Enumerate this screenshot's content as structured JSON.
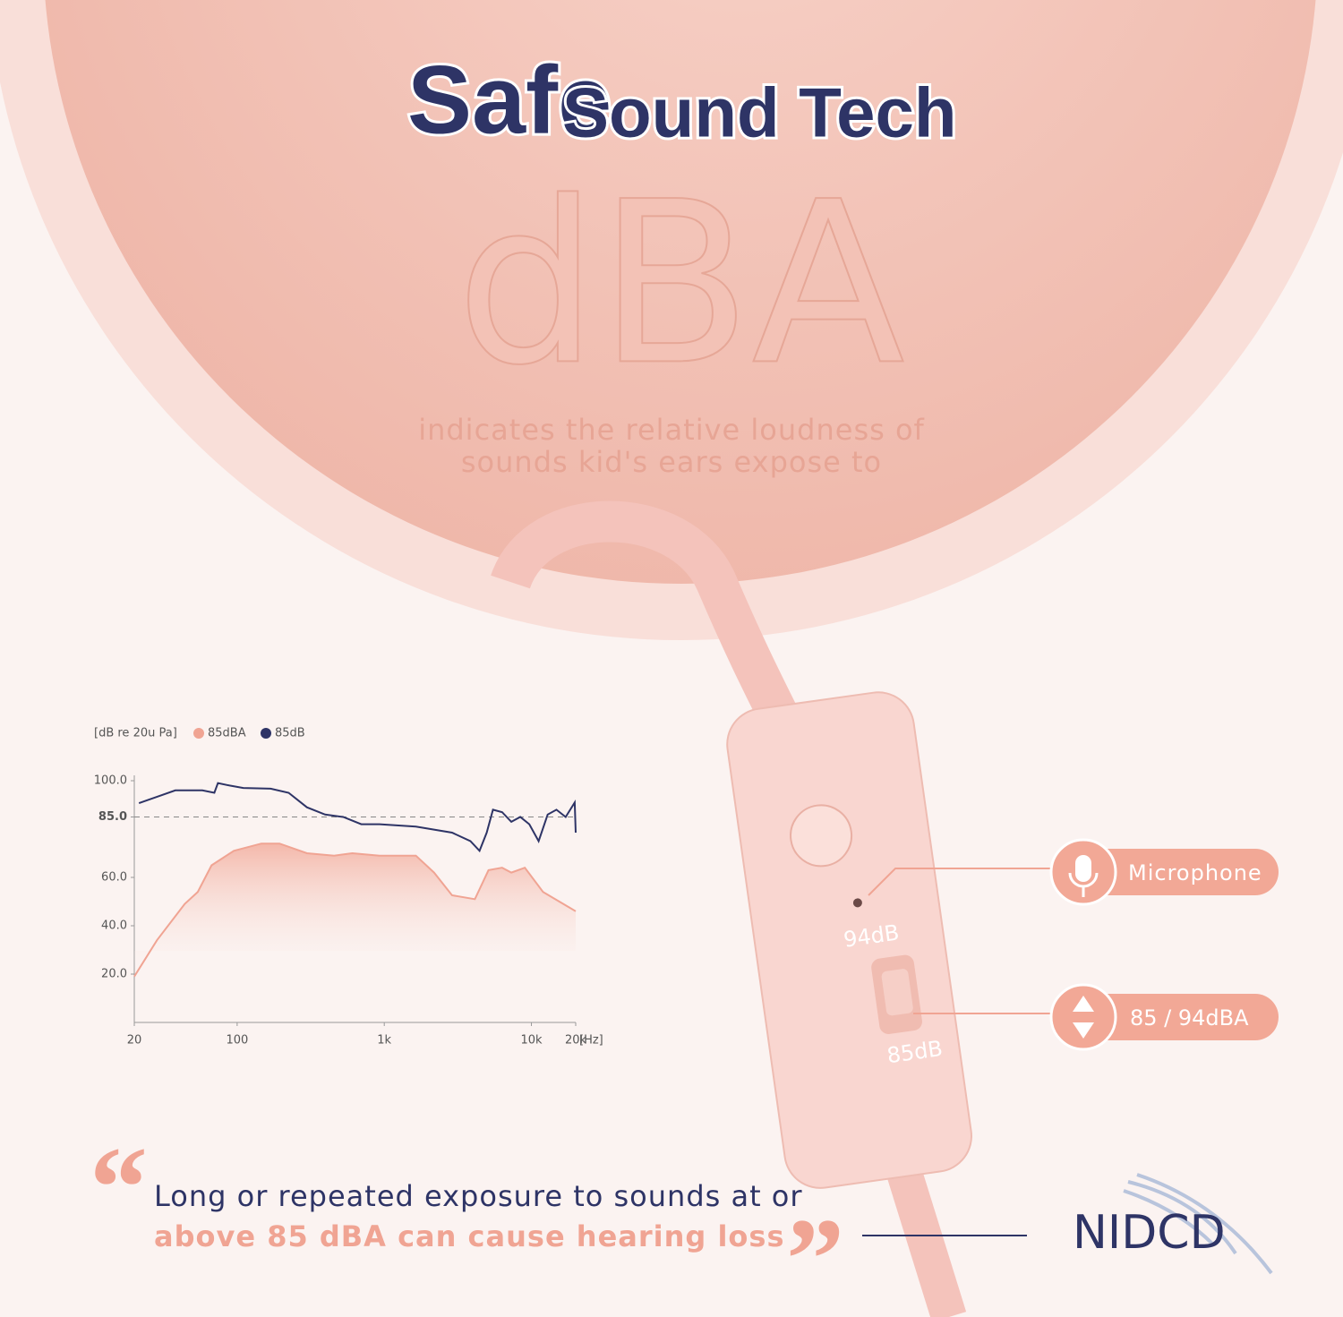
{
  "header": {
    "title_a": "Safe",
    "title_b": "Sound Tech",
    "big": "dBA",
    "subtitle": [
      "indicates the relative loudness of",
      "sounds kid's ears expose to"
    ]
  },
  "device": {
    "label_top": "94dB",
    "label_bottom": "85dB"
  },
  "callouts": [
    "Microphone",
    "85 / 94dBA"
  ],
  "quote": {
    "open": "“",
    "close": "”",
    "lines": [
      "Long or repeated exposure to sounds at or",
      "above 85 dBA can cause hearing loss"
    ],
    "source": "NIDCD"
  },
  "chart_data": {
    "type": "line",
    "y_label": "[dB re 20u Pa]",
    "x_label": "[Hz]",
    "x_log": true,
    "xlim": [
      20,
      20000
    ],
    "xticks": [
      20,
      100,
      {
        "value": 1000,
        "label": "1k"
      },
      {
        "value": 10000,
        "label": "10k"
      },
      {
        "value": 20000,
        "label": "20k"
      }
    ],
    "ylim": [
      0,
      100
    ],
    "yticks": [
      {
        "value": 100,
        "label": "100.0"
      },
      {
        "value": 85,
        "label": "85.0"
      },
      {
        "value": 60,
        "label": "60.0"
      },
      {
        "value": 40,
        "label": "40.0"
      },
      {
        "value": 20,
        "label": "20.0"
      }
    ],
    "reference_line": 85,
    "series": [
      {
        "name": "85dBA",
        "color": "#f0a493",
        "area": true,
        "x": [
          20,
          28.5,
          44,
          54,
          67,
          95,
          146,
          194,
          298,
          456,
          606,
          928,
          1640,
          2180,
          2890,
          4130,
          5110,
          6320,
          7300,
          9020,
          12000,
          20000
        ],
        "values": [
          19,
          34,
          49,
          54,
          65,
          71,
          74,
          74,
          70,
          69,
          70,
          69,
          69,
          62,
          52.6,
          51,
          63,
          64,
          62,
          64,
          54,
          46
        ]
      },
      {
        "name": "85dB",
        "color": "#2e3466",
        "x": [
          21.5,
          24.7,
          38,
          58,
          70,
          74,
          89,
          110,
          169,
          224,
          298,
          396,
          526,
          698,
          928,
          1640,
          2890,
          3850,
          4440,
          4970,
          5480,
          6320,
          7300,
          8400,
          9680,
          11200,
          12900,
          14800,
          17100,
          19700,
          20000
        ],
        "values": [
          90.7,
          92,
          96,
          96,
          95,
          99,
          98,
          97,
          96.7,
          95,
          89,
          86,
          85,
          82,
          82,
          81,
          78.5,
          75,
          71,
          78.5,
          88,
          87,
          83,
          85,
          82,
          75,
          86,
          88,
          85,
          91,
          78.5
        ]
      }
    ]
  }
}
